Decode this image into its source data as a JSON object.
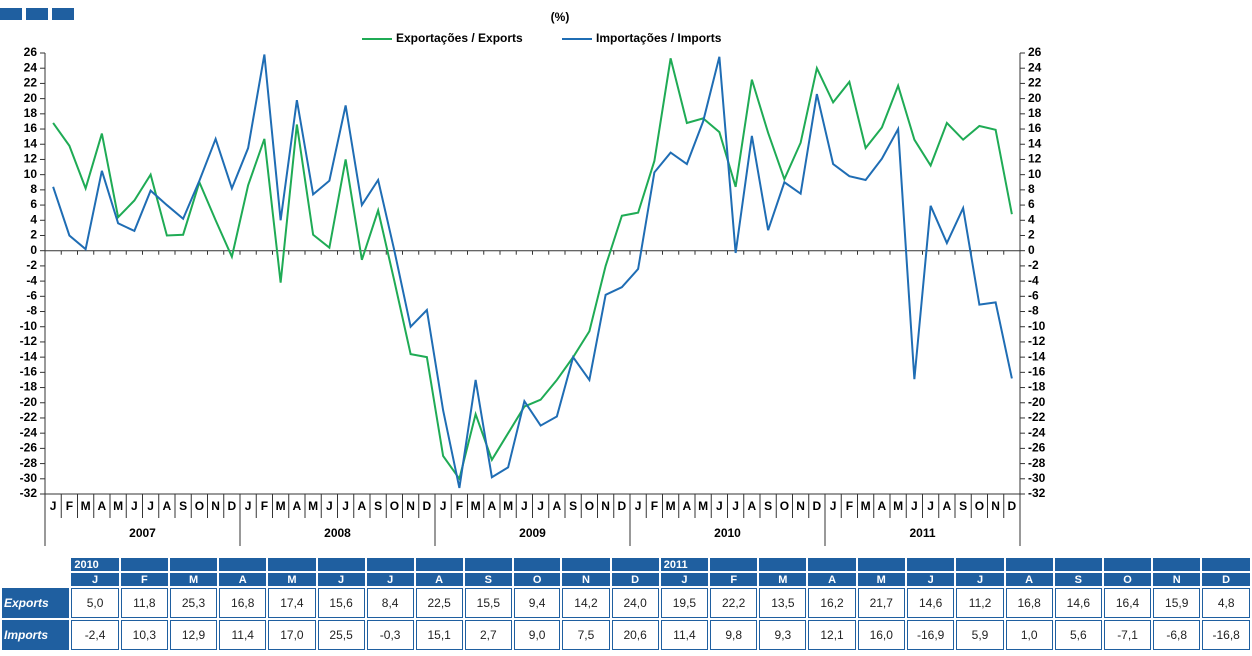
{
  "chart_data": {
    "type": "line",
    "subtitle": "(%)",
    "categories": [
      "J",
      "F",
      "M",
      "A",
      "M",
      "J",
      "J",
      "A",
      "S",
      "O",
      "N",
      "D",
      "J",
      "F",
      "M",
      "A",
      "M",
      "J",
      "J",
      "A",
      "S",
      "O",
      "N",
      "D",
      "J",
      "F",
      "M",
      "A",
      "M",
      "J",
      "J",
      "A",
      "S",
      "O",
      "N",
      "D",
      "J",
      "F",
      "M",
      "A",
      "M",
      "J",
      "J",
      "A",
      "S",
      "O",
      "N",
      "D",
      "J",
      "F",
      "M",
      "A",
      "M",
      "J",
      "J",
      "A",
      "S",
      "O",
      "N",
      "D"
    ],
    "year_labels": [
      "2007",
      "2008",
      "2009",
      "2010",
      "2011"
    ],
    "series": [
      {
        "name": "Exportações / Exports",
        "color": "#1fab55",
        "values": [
          16.8,
          13.8,
          8.2,
          15.4,
          4.4,
          6.6,
          10.0,
          2.0,
          2.1,
          9.0,
          4.0,
          -0.8,
          8.6,
          14.7,
          -4.2,
          16.6,
          2.1,
          0.4,
          12.0,
          -1.2,
          5.3,
          -4.0,
          -13.6,
          -14.0,
          -27.0,
          -30.0,
          -21.5,
          -27.5,
          -24.0,
          -20.5,
          -19.6,
          -17.0,
          -14.0,
          -10.6,
          -2.0,
          4.6,
          5.0,
          11.8,
          25.3,
          16.8,
          17.4,
          15.6,
          8.4,
          22.5,
          15.5,
          9.4,
          14.2,
          24.0,
          19.5,
          22.2,
          13.5,
          16.2,
          21.7,
          14.6,
          11.2,
          16.8,
          14.6,
          16.4,
          15.9,
          4.8
        ]
      },
      {
        "name": "Importações / Imports",
        "color": "#1f6db4",
        "values": [
          8.4,
          2.0,
          0.2,
          10.5,
          3.6,
          2.6,
          7.9,
          6.0,
          4.2,
          9.2,
          14.7,
          8.2,
          13.5,
          25.8,
          4.0,
          19.8,
          7.4,
          9.2,
          19.1,
          6.0,
          9.3,
          0.0,
          -10.0,
          -7.8,
          -21.0,
          -31.2,
          -17.0,
          -29.8,
          -28.5,
          -19.8,
          -23.0,
          -21.8,
          -14.0,
          -17.0,
          -5.8,
          -4.8,
          -2.4,
          10.3,
          12.9,
          11.4,
          17.0,
          25.5,
          -0.3,
          15.1,
          2.7,
          9.0,
          7.5,
          20.6,
          11.4,
          9.8,
          9.3,
          12.1,
          16.0,
          -16.9,
          5.9,
          1.0,
          5.6,
          -7.1,
          -6.8,
          -16.8
        ]
      }
    ],
    "ylim": [
      -32,
      26
    ],
    "yticks": [
      -32,
      -30,
      -28,
      -26,
      -24,
      -22,
      -20,
      -18,
      -16,
      -14,
      -12,
      -10,
      -8,
      -6,
      -4,
      -2,
      0,
      2,
      4,
      6,
      8,
      10,
      12,
      14,
      16,
      18,
      20,
      22,
      24,
      26
    ]
  },
  "table": {
    "years": [
      "2010",
      "2011"
    ],
    "months": [
      "J",
      "F",
      "M",
      "A",
      "M",
      "J",
      "J",
      "A",
      "S",
      "O",
      "N",
      "D",
      "J",
      "F",
      "M",
      "A",
      "M",
      "J",
      "J",
      "A",
      "S",
      "O",
      "N",
      "D"
    ],
    "rows": [
      {
        "label": "Exports",
        "cells": [
          "5,0",
          "11,8",
          "25,3",
          "16,8",
          "17,4",
          "15,6",
          "8,4",
          "22,5",
          "15,5",
          "9,4",
          "14,2",
          "24,0",
          "19,5",
          "22,2",
          "13,5",
          "16,2",
          "21,7",
          "14,6",
          "11,2",
          "16,8",
          "14,6",
          "16,4",
          "15,9",
          "4,8"
        ]
      },
      {
        "label": "Imports",
        "cells": [
          "-2,4",
          "10,3",
          "12,9",
          "11,4",
          "17,0",
          "25,5",
          "-0,3",
          "15,1",
          "2,7",
          "9,0",
          "7,5",
          "20,6",
          "11,4",
          "9,8",
          "9,3",
          "12,1",
          "16,0",
          "-16,9",
          "5,9",
          "1,0",
          "5,6",
          "-7,1",
          "-6,8",
          "-16,8"
        ]
      }
    ]
  }
}
